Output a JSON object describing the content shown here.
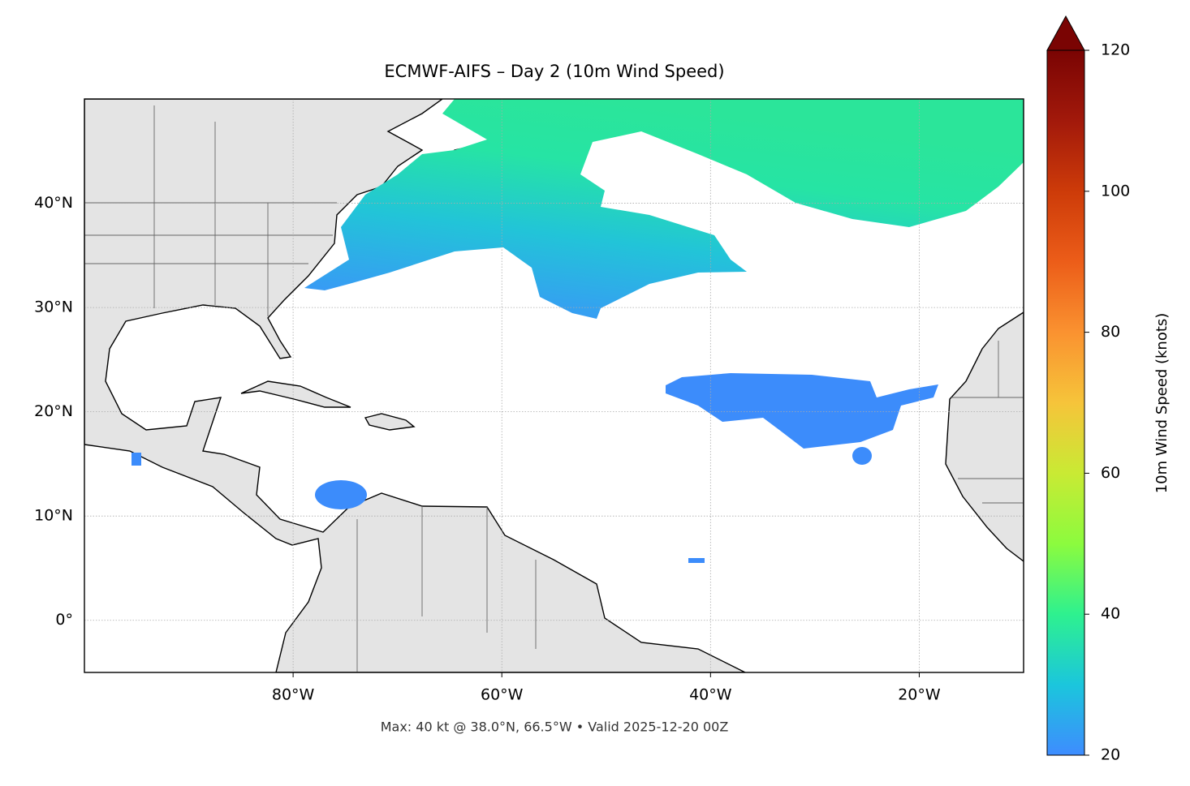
{
  "chart_data": {
    "type": "map",
    "title": "ECMWF-AIFS – Day 2 (10m Wind Speed)",
    "footer": "Max: 40 kt @ 38.0°N, 66.5°W • Valid 2025-12-20 00Z",
    "xlim": [
      -100,
      -10
    ],
    "ylim": [
      -5,
      50
    ],
    "xticks": [
      {
        "value": -80,
        "label": "80°W"
      },
      {
        "value": -60,
        "label": "60°W"
      },
      {
        "value": -40,
        "label": "40°W"
      },
      {
        "value": -20,
        "label": "20°W"
      }
    ],
    "yticks": [
      {
        "value": 0,
        "label": "0°"
      },
      {
        "value": 10,
        "label": "10°N"
      },
      {
        "value": 20,
        "label": "20°N"
      },
      {
        "value": 30,
        "label": "30°N"
      },
      {
        "value": 40,
        "label": "40°N"
      }
    ],
    "grid": true,
    "colorbar": {
      "label": "10m Wind Speed (knots)",
      "clim": [
        20,
        120
      ],
      "ticks": [
        20,
        40,
        60,
        80,
        100,
        120
      ]
    }
  }
}
